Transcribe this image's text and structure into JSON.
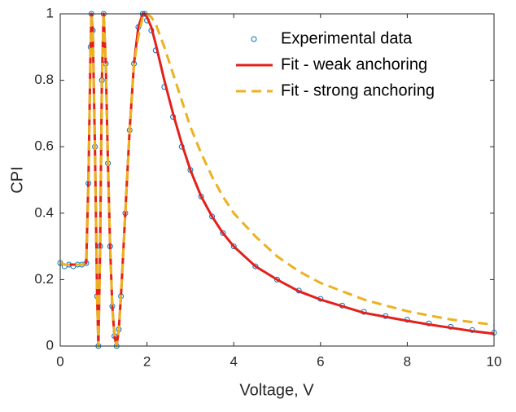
{
  "chart_data": {
    "type": "line",
    "xlabel": "Voltage, V",
    "ylabel": "CPI",
    "x": [
      0,
      0.1,
      0.2,
      0.3,
      0.4,
      0.5,
      0.6,
      0.65,
      0.7,
      0.72,
      0.75,
      0.8,
      0.85,
      0.88,
      0.92,
      0.96,
      1.0,
      1.05,
      1.1,
      1.15,
      1.2,
      1.25,
      1.3,
      1.35,
      1.4,
      1.5,
      1.6,
      1.7,
      1.8,
      1.9,
      1.95,
      2.0,
      2.1,
      2.2,
      2.4,
      2.6,
      2.8,
      3.0,
      3.25,
      3.5,
      3.75,
      4,
      4.5,
      5,
      5.5,
      6,
      6.5,
      7,
      7.5,
      8,
      8.5,
      9,
      9.5,
      10
    ],
    "series": [
      {
        "name": "Experimental data",
        "color": "#0072bd",
        "marker": "circle",
        "values": [
          0.25,
          0.24,
          0.245,
          0.24,
          0.245,
          0.245,
          0.25,
          0.49,
          0.9,
          1.0,
          0.95,
          0.6,
          0.15,
          0.0,
          0.3,
          0.8,
          1.0,
          0.85,
          0.55,
          0.3,
          0.12,
          0.03,
          0.0,
          0.05,
          0.15,
          0.4,
          0.65,
          0.85,
          0.96,
          1.0,
          1.0,
          0.98,
          0.95,
          0.89,
          0.78,
          0.69,
          0.6,
          0.53,
          0.45,
          0.39,
          0.34,
          0.3,
          0.24,
          0.2,
          0.167,
          0.142,
          0.122,
          0.103,
          0.09,
          0.079,
          0.068,
          0.058,
          0.048,
          0.04
        ]
      },
      {
        "name": "Fit - weak anchoring",
        "color": "#e3201b",
        "dash": false,
        "values": [
          0.25,
          0.245,
          0.245,
          0.245,
          0.245,
          0.245,
          0.25,
          0.5,
          0.9,
          1.0,
          0.95,
          0.6,
          0.15,
          0.0,
          0.3,
          0.8,
          1.0,
          0.85,
          0.55,
          0.3,
          0.12,
          0.03,
          0.0,
          0.05,
          0.15,
          0.4,
          0.65,
          0.85,
          0.96,
          1.0,
          1.0,
          0.99,
          0.96,
          0.91,
          0.8,
          0.7,
          0.61,
          0.53,
          0.45,
          0.39,
          0.34,
          0.3,
          0.24,
          0.2,
          0.165,
          0.14,
          0.12,
          0.1,
          0.088,
          0.076,
          0.065,
          0.055,
          0.045,
          0.037
        ]
      },
      {
        "name": "Fit - strong anchoring",
        "color": "#edb120",
        "dash": true,
        "values": [
          0.25,
          0.245,
          0.245,
          0.245,
          0.245,
          0.245,
          0.25,
          0.5,
          0.9,
          1.0,
          0.95,
          0.6,
          0.15,
          0.0,
          0.3,
          0.8,
          1.0,
          0.85,
          0.55,
          0.3,
          0.12,
          0.03,
          0.0,
          0.05,
          0.15,
          0.4,
          0.65,
          0.85,
          0.93,
          0.99,
          1.0,
          1.0,
          0.99,
          0.97,
          0.9,
          0.82,
          0.74,
          0.66,
          0.58,
          0.51,
          0.45,
          0.4,
          0.33,
          0.27,
          0.225,
          0.19,
          0.165,
          0.14,
          0.122,
          0.105,
          0.092,
          0.08,
          0.072,
          0.064
        ]
      }
    ],
    "xlim": [
      0,
      10
    ],
    "xticks": [
      0,
      2,
      4,
      6,
      8,
      10
    ],
    "ylim": [
      0,
      1
    ],
    "yticks": [
      0,
      0.2,
      0.4,
      0.6,
      0.8,
      1
    ],
    "grid": false,
    "legend": "northeast"
  }
}
